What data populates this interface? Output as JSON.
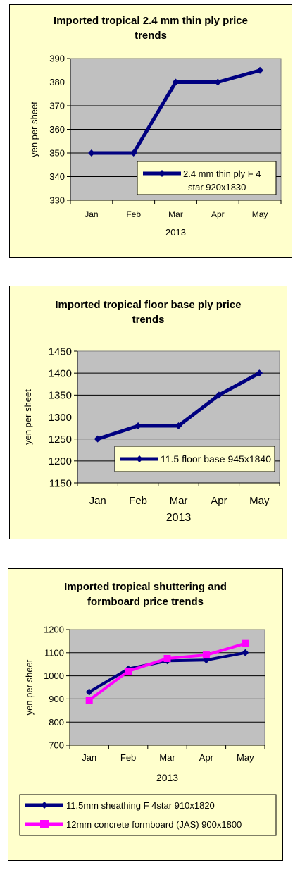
{
  "chart_data": [
    {
      "type": "line",
      "title": "Imported tropical 2.4 mm thin ply price trends",
      "xlabel": "2013",
      "ylabel": "yen per sheet",
      "categories": [
        "Jan",
        "Feb",
        "Mar",
        "Apr",
        "May"
      ],
      "ylim": [
        330,
        390
      ],
      "yticks": [
        "390",
        "380",
        "370",
        "360",
        "350",
        "340",
        "330"
      ],
      "grid": true,
      "legend_position": "inside-bottom-right",
      "series": [
        {
          "name": "2.4 mm thin ply F 4 star 920x1830",
          "values": [
            350,
            350,
            380,
            380,
            385
          ],
          "color": "#000080",
          "marker": "diamond"
        }
      ]
    },
    {
      "type": "line",
      "title": "Imported tropical floor base ply price trends",
      "xlabel": "2013",
      "ylabel": "yen per sheet",
      "categories": [
        "Jan",
        "Feb",
        "Mar",
        "Apr",
        "May"
      ],
      "ylim": [
        1150,
        1450
      ],
      "yticks": [
        "1450",
        "1400",
        "1350",
        "1300",
        "1250",
        "1200",
        "1150"
      ],
      "grid": true,
      "legend_position": "inside-bottom-right",
      "series": [
        {
          "name": "11.5 floor base 945x1840",
          "values": [
            1250,
            1280,
            1280,
            1350,
            1400
          ],
          "color": "#000080",
          "marker": "diamond"
        }
      ]
    },
    {
      "type": "line",
      "title": "Imported tropical shuttering and formboard price trends",
      "xlabel": "2013",
      "ylabel": "yen per sheet",
      "categories": [
        "Jan",
        "Feb",
        "Mar",
        "Apr",
        "May"
      ],
      "ylim": [
        700,
        1200
      ],
      "yticks": [
        "1200",
        "1100",
        "1000",
        "900",
        "800",
        "700"
      ],
      "grid": true,
      "legend_position": "bottom",
      "series": [
        {
          "name": "11.5mm sheathing F 4star 910x1820",
          "values": [
            930,
            1030,
            1065,
            1068,
            1100
          ],
          "color": "#000080",
          "marker": "diamond"
        },
        {
          "name": "12mm concrete formboard (JAS) 900x1800",
          "values": [
            895,
            1020,
            1075,
            1090,
            1140
          ],
          "color": "#ff00ff",
          "marker": "square"
        }
      ]
    }
  ]
}
